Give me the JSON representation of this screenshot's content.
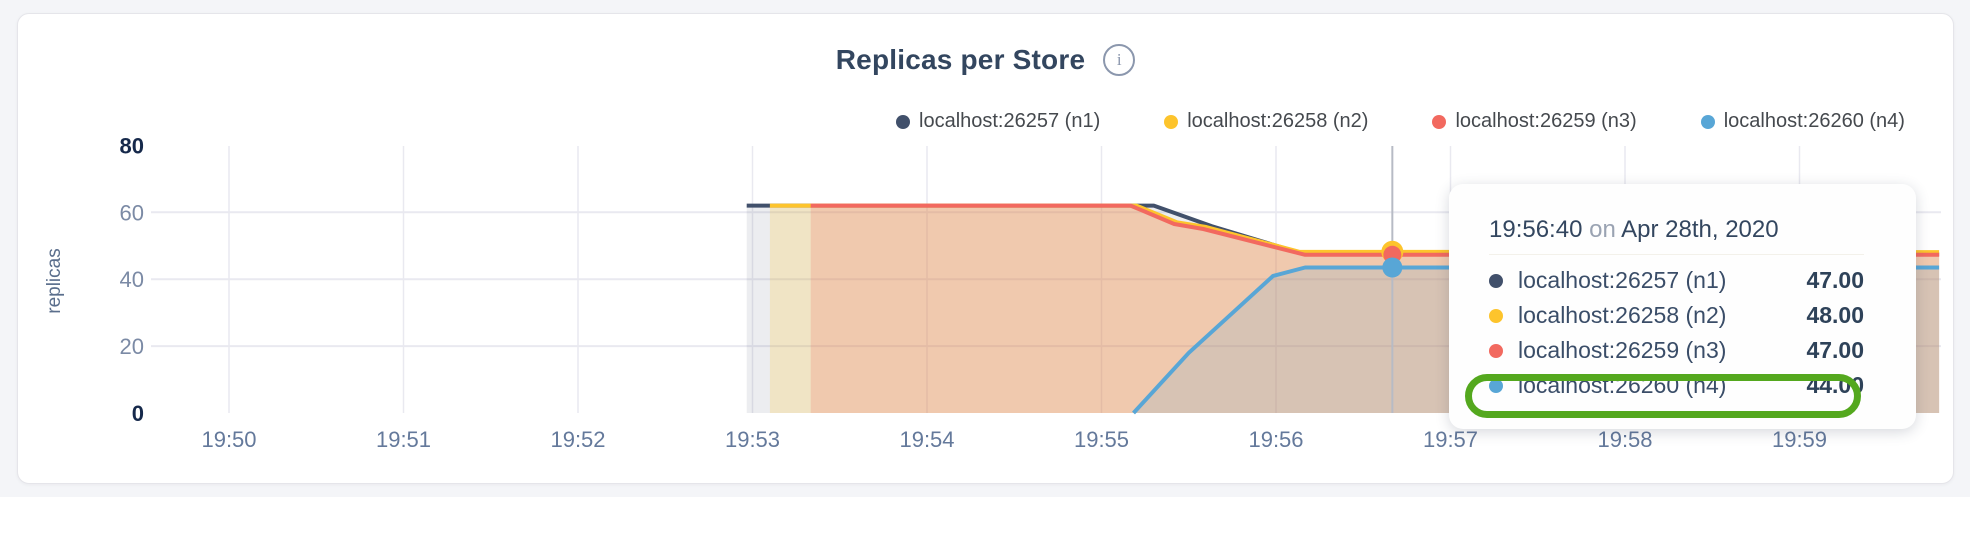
{
  "header": {
    "title": "Replicas per Store",
    "info_icon_glyph": "i"
  },
  "legend": [
    {
      "label": "localhost:26257 (n1)",
      "color": "#41506b"
    },
    {
      "label": "localhost:26258 (n2)",
      "color": "#fdc42c"
    },
    {
      "label": "localhost:26259 (n3)",
      "color": "#f2695f"
    },
    {
      "label": "localhost:26260 (n4)",
      "color": "#58a6d6"
    }
  ],
  "chart_data": {
    "type": "area",
    "title": "Replicas per Store",
    "ylabel": "replicas",
    "ylim": [
      0,
      80
    ],
    "yticks": [
      0,
      20,
      40,
      60,
      80
    ],
    "bold_yticks": [
      0,
      80
    ],
    "xticks": [
      "19:50",
      "19:51",
      "19:52",
      "19:53",
      "19:54",
      "19:55",
      "19:56",
      "19:57",
      "19:58",
      "19:59"
    ],
    "grid": true,
    "legend_position": "top-right",
    "series": [
      {
        "name": "localhost:26257 (n1)",
        "color": "#41506b",
        "fill_opacity": 0.1,
        "dot_radius": 8,
        "points": [
          [
            "19:52:58",
            62
          ],
          [
            "19:55:18",
            62
          ],
          [
            "19:55:38",
            55.8
          ],
          [
            "19:56:10",
            47.4
          ],
          [
            "19:59:48",
            47.4
          ]
        ]
      },
      {
        "name": "localhost:26258 (n2)",
        "color": "#fdc42c",
        "fill_opacity": 0.22,
        "dot_radius": 11,
        "points": [
          [
            "19:53:06",
            62
          ],
          [
            "19:55:12",
            62
          ],
          [
            "19:55:26",
            57
          ],
          [
            "19:55:36",
            55.6
          ],
          [
            "19:56:08",
            48.2
          ],
          [
            "19:59:48",
            48.1
          ]
        ]
      },
      {
        "name": "localhost:26259 (n3)",
        "color": "#f2695f",
        "fill_opacity": 0.22,
        "dot_radius": 9,
        "points": [
          [
            "19:53:20",
            62
          ],
          [
            "19:55:10",
            62
          ],
          [
            "19:55:25",
            56.5
          ],
          [
            "19:55:35",
            55
          ],
          [
            "19:56:10",
            47.3
          ],
          [
            "19:59:48",
            47.3
          ]
        ]
      },
      {
        "name": "localhost:26260 (n4)",
        "color": "#58a6d6",
        "fill_opacity": 0.16,
        "dot_radius": 10,
        "points": [
          [
            "19:55:11",
            0
          ],
          [
            "19:55:30",
            18
          ],
          [
            "19:55:59",
            41
          ],
          [
            "19:56:10",
            43.5
          ],
          [
            "19:59:48",
            43.5
          ]
        ]
      }
    ],
    "hover_time": "19:56:40",
    "hover_values": [
      47.0,
      48.0,
      47.0,
      44.0
    ]
  },
  "tooltip": {
    "time": "19:56:40",
    "conjunction": "on",
    "date": "Apr 28th, 2020",
    "rows": [
      {
        "label": "localhost:26257 (n1)",
        "value": "47.00",
        "color": "#41506b"
      },
      {
        "label": "localhost:26258 (n2)",
        "value": "48.00",
        "color": "#fdc42c"
      },
      {
        "label": "localhost:26259 (n3)",
        "value": "47.00",
        "color": "#f2695f"
      },
      {
        "label": "localhost:26260 (n4)",
        "value": "44.00",
        "color": "#58a6d6"
      }
    ],
    "highlighted_row": 3,
    "highlight_color": "#54a81e"
  },
  "colors": {
    "page_background": "#f4f5f8",
    "card_background": "#ffffff",
    "grid_line": "#e9e9f0",
    "hover_line": "#b7bbc5",
    "tick_bold": "#16294b",
    "tick_minor": "#7b8aa5",
    "tick_x": "#64799b"
  }
}
